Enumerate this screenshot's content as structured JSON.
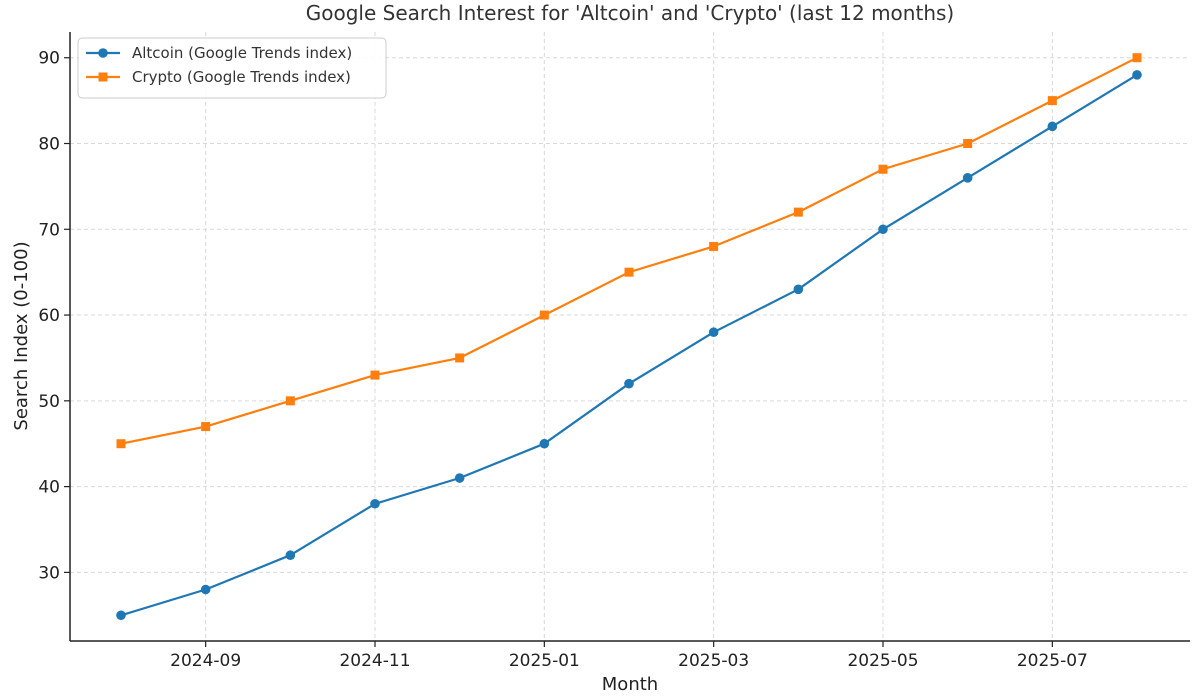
{
  "chart_data": {
    "type": "line",
    "title": "Google Search Interest for 'Altcoin' and 'Crypto' (last 12 months)",
    "xlabel": "Month",
    "ylabel": "Search Index (0-100)",
    "x": [
      "2024-08",
      "2024-09",
      "2024-10",
      "2024-11",
      "2024-12",
      "2025-01",
      "2025-02",
      "2025-03",
      "2025-04",
      "2025-05",
      "2025-06",
      "2025-07",
      "2025-08"
    ],
    "x_ticks": [
      "2024-09",
      "2024-11",
      "2025-01",
      "2025-03",
      "2025-05",
      "2025-07"
    ],
    "y_ticks": [
      30,
      40,
      50,
      60,
      70,
      80,
      90
    ],
    "ylim": [
      22,
      93
    ],
    "grid": true,
    "legend_position": "top-left",
    "series": [
      {
        "name": "Altcoin (Google Trends index)",
        "color": "#1f77b4",
        "marker": "circle",
        "values": [
          25,
          28,
          32,
          38,
          41,
          45,
          52,
          58,
          63,
          70,
          76,
          82,
          88
        ]
      },
      {
        "name": "Crypto (Google Trends index)",
        "color": "#ff7f0e",
        "marker": "square",
        "values": [
          45,
          47,
          50,
          53,
          55,
          60,
          65,
          68,
          72,
          77,
          80,
          85,
          90
        ]
      }
    ]
  }
}
